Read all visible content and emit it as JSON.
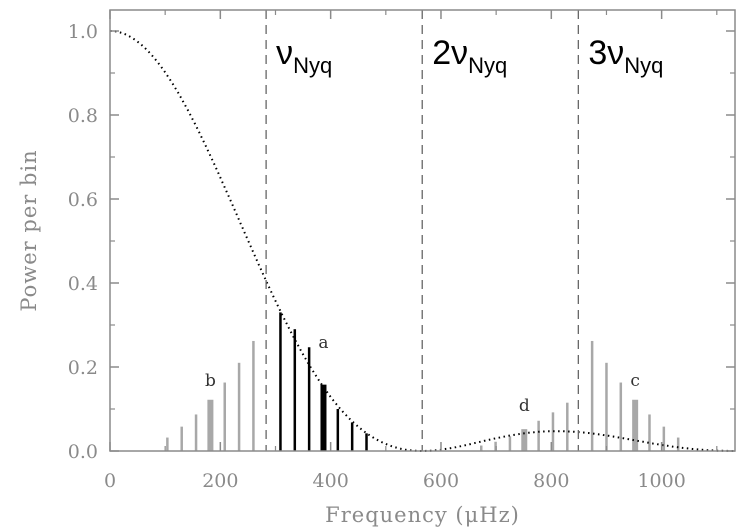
{
  "chart_data": {
    "type": "bar",
    "xlabel": "Frequency (μHz)",
    "ylabel": "Power per bin",
    "xlim": [
      0,
      1133
    ],
    "ylim": [
      0,
      1.05
    ],
    "xticks": [
      0,
      200,
      400,
      600,
      800,
      1000
    ],
    "yticks": [
      0.0,
      0.2,
      0.4,
      0.6,
      0.8,
      1.0
    ],
    "xtick_labels": [
      "0",
      "200",
      "400",
      "600",
      "800",
      "1000"
    ],
    "ytick_labels": [
      "0.0",
      "0.2",
      "0.4",
      "0.6",
      "0.8",
      "1.0"
    ],
    "nyquist_markers": [
      {
        "x": 283,
        "prefix": "",
        "symbol": "ν",
        "subscript": "Nyq"
      },
      {
        "x": 566,
        "prefix": "2",
        "symbol": "ν",
        "subscript": "Nyq"
      },
      {
        "x": 849,
        "prefix": "3",
        "symbol": "ν",
        "subscript": "Nyq"
      }
    ],
    "envelope": {
      "style": "dotted",
      "color": "#000000",
      "nyquist": 283,
      "description_free": true
    },
    "series": [
      {
        "color": "#a8a8a8",
        "x": [
          104,
          130,
          156,
          182,
          208,
          234,
          260
        ],
        "values": [
          0.032,
          0.058,
          0.087,
          0.122,
          0.163,
          0.21,
          0.262
        ],
        "highlight_index": 3
      },
      {
        "color": "#000000",
        "x": [
          309,
          335,
          361,
          387,
          413,
          439,
          465
        ],
        "values": [
          0.33,
          0.29,
          0.247,
          0.158,
          0.1,
          0.068,
          0.042
        ],
        "highlight_index": 3
      },
      {
        "color": "#a8a8a8",
        "x": [
          673,
          699,
          725,
          751,
          777,
          803,
          829
        ],
        "values": [
          0.013,
          0.022,
          0.035,
          0.052,
          0.072,
          0.092,
          0.115
        ],
        "highlight_index": 3
      },
      {
        "color": "#a8a8a8",
        "x": [
          874,
          900,
          926,
          952,
          978,
          1004,
          1030
        ],
        "values": [
          0.262,
          0.21,
          0.163,
          0.122,
          0.087,
          0.058,
          0.032
        ],
        "highlight_index": 3
      }
    ],
    "annotations": [
      {
        "text": "b",
        "x": 182,
        "y": 0.155
      },
      {
        "text": "a",
        "x": 387,
        "y": 0.245
      },
      {
        "text": "d",
        "x": 751,
        "y": 0.095
      },
      {
        "text": "c",
        "x": 952,
        "y": 0.155
      }
    ]
  }
}
